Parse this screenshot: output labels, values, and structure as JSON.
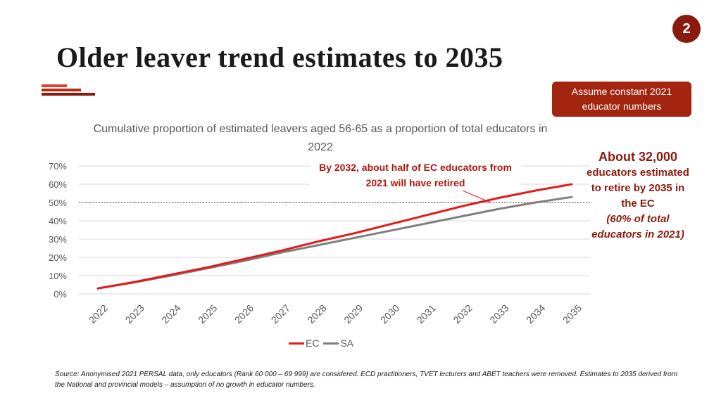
{
  "page_number": "2",
  "title": "Older leaver trend estimates to 2035",
  "note_box": "Assume constant 2021 educator numbers",
  "annotation": "By 2032, about half of EC educators from 2021 will have retired",
  "side_note": {
    "headline": "About 32,000",
    "body": "educators estimated to retire by 2035 in the EC",
    "italic": "(60% of total educators in 2021)"
  },
  "source": "Source: Anonymised 2021 PERSAL data, only educators (Rank 60 000 – 69 999) are considered. ECD practitioners, TVET lecturers and ABET teachers were removed. Estimates to 2035 derived from the National and provincial models – assumption of no growth in educator numbers.",
  "colors": {
    "ec": "#e31a1c",
    "sa": "#7f7f7f",
    "accent": "#a3240f",
    "dark_accent": "#8b1a0e"
  },
  "chart_data": {
    "type": "line",
    "title": "Cumulative proportion of estimated leavers aged 56-65 as a proportion of total educators in 2022",
    "xlabel": "",
    "ylabel": "",
    "categories": [
      "2022",
      "2023",
      "2024",
      "2025",
      "2026",
      "2027",
      "2028",
      "2029",
      "2030",
      "2031",
      "2032",
      "2033",
      "2034",
      "2035"
    ],
    "series": [
      {
        "name": "EC",
        "values": [
          3,
          6.5,
          10.5,
          14.5,
          19,
          23.5,
          28.5,
          33,
          38,
          43,
          48,
          52.5,
          56.5,
          60
        ]
      },
      {
        "name": "SA",
        "values": [
          3,
          6.3,
          10,
          14,
          18,
          22.5,
          26.5,
          30.5,
          34.5,
          38.5,
          42.5,
          46.5,
          50,
          53
        ]
      }
    ],
    "reference_line": 50,
    "yticks": [
      "0%",
      "10%",
      "20%",
      "30%",
      "40%",
      "50%",
      "60%",
      "70%"
    ],
    "ylim": [
      0,
      70
    ],
    "grid": true,
    "legend": "bottom"
  }
}
